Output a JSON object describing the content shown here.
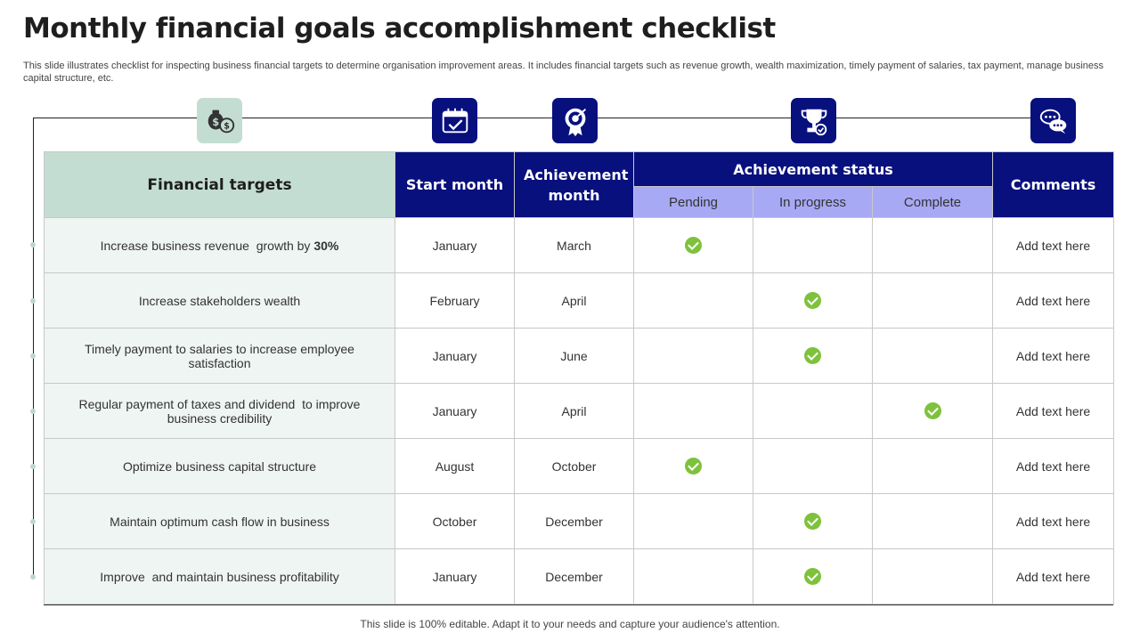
{
  "title": "Monthly financial goals accomplishment checklist",
  "subtitle": "This slide illustrates checklist for inspecting business financial targets to determine organisation improvement areas. It includes financial targets such as revenue growth, wealth maximization, timely payment of salaries, tax payment, manage business capital structure, etc.",
  "icons": [
    "money-bags-icon",
    "calendar-icon",
    "target-badge-icon",
    "trophy-icon",
    "chat-bubbles-icon"
  ],
  "headers": {
    "targets": "Financial targets",
    "start": "Start month",
    "achievement": "Achievement month",
    "status": "Achievement status",
    "pending": "Pending",
    "in_progress": "In progress",
    "complete": "Complete",
    "comments": "Comments"
  },
  "rows": [
    {
      "target": "Increase business revenue  growth by ",
      "target_bold": "30%",
      "start": "January",
      "achieved": "March",
      "status": "pending",
      "comment": "Add text here"
    },
    {
      "target": "Increase stakeholders wealth",
      "start": "February",
      "achieved": "April",
      "status": "in_progress",
      "comment": "Add text here"
    },
    {
      "target": "Timely payment to salaries to increase employee satisfaction",
      "start": "January",
      "achieved": "June",
      "status": "in_progress",
      "comment": "Add text here"
    },
    {
      "target": "Regular payment of taxes and dividend  to improve  business credibility",
      "start": "January",
      "achieved": "April",
      "status": "complete",
      "comment": "Add text here"
    },
    {
      "target": "Optimize business capital structure",
      "start": "August",
      "achieved": "October",
      "status": "pending",
      "comment": "Add text here"
    },
    {
      "target": "Maintain optimum cash flow in business",
      "start": "October",
      "achieved": "December",
      "status": "in_progress",
      "comment": "Add text here"
    },
    {
      "target": "Improve  and maintain business profitability",
      "start": "January",
      "achieved": "December",
      "status": "in_progress",
      "comment": "Add text here"
    }
  ],
  "footer": "This slide is 100% editable. Adapt it to your needs and capture your audience's attention.",
  "colors": {
    "navy": "#08107e",
    "mint": "#c4ddd3",
    "lavender": "#a8a9f4",
    "check_green": "#7ec23c"
  }
}
